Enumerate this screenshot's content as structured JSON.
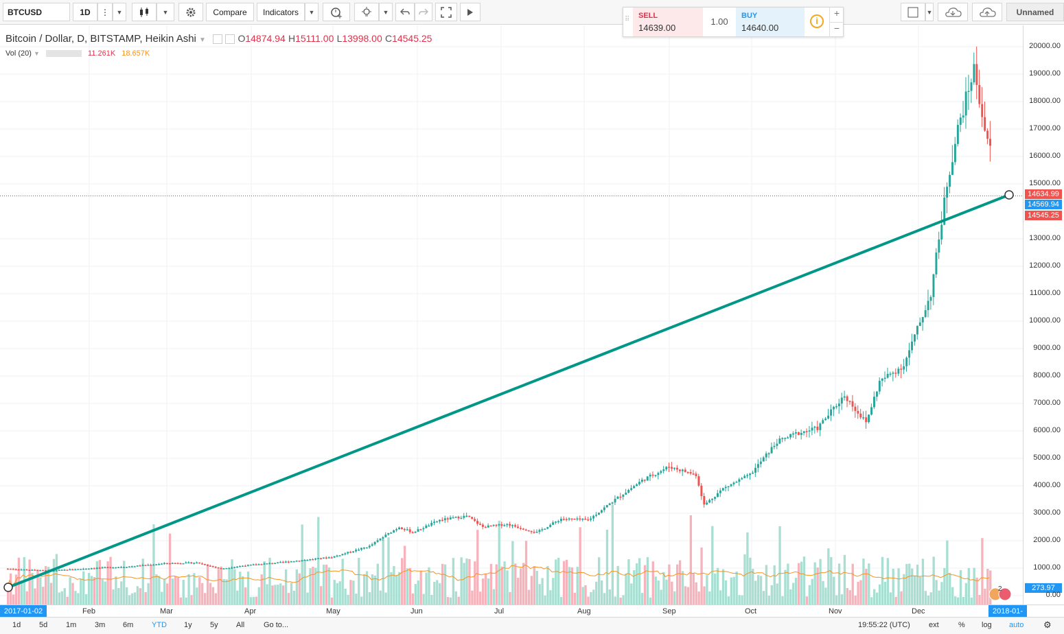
{
  "toolbar": {
    "symbol": "BTCUSD",
    "interval": "1D",
    "compare_label": "Compare",
    "indicators_label": "Indicators",
    "layout_name": "Unnamed"
  },
  "trade": {
    "sell_label": "SELL",
    "sell_price": "14639.00",
    "quantity": "1.00",
    "buy_label": "BUY",
    "buy_price": "14640.00"
  },
  "legend": {
    "title": "Bitcoin / Dollar, D, BITSTAMP, Heikin Ashi",
    "o_label": "O",
    "o_value": "14874.94",
    "h_label": "H",
    "h_value": "15111.00",
    "l_label": "L",
    "l_value": "13998.00",
    "c_label": "C",
    "c_value": "14545.25",
    "vol_label": "Vol (20)",
    "vol_value": "11.261K",
    "vol_ma_value": "18.657K"
  },
  "price_axis": [
    "20000.00",
    "19000.00",
    "18000.00",
    "17000.00",
    "16000.00",
    "15000.00",
    "13000.00",
    "12000.00",
    "11000.00",
    "10000.00",
    "9000.00",
    "8000.00",
    "7000.00",
    "6000.00",
    "5000.00",
    "4000.00",
    "3000.00",
    "2000.00",
    "1000.00",
    "0.00"
  ],
  "price_tags": {
    "last": "14634.99",
    "line": "14569.94",
    "close": "14545.25",
    "volume": "273.97"
  },
  "time_axis": {
    "start": "2017-01-02",
    "end": "2018-01-",
    "months": [
      "Feb",
      "Mar",
      "Apr",
      "May",
      "Jun",
      "Jul",
      "Aug",
      "Sep",
      "Oct",
      "Nov",
      "Dec"
    ]
  },
  "ranges": [
    "1d",
    "5d",
    "1m",
    "3m",
    "6m",
    "YTD",
    "1y",
    "5y",
    "All",
    "Go to..."
  ],
  "status": {
    "time": "19:55:22 (UTC)",
    "ext": "ext",
    "pct": "%",
    "log": "log",
    "auto": "auto"
  },
  "colors": {
    "up": "#26a69a",
    "down": "#ef5350",
    "trend": "#009688",
    "accent": "#2196f3"
  },
  "chart_data": {
    "type": "candlestick",
    "title": "Bitcoin / Dollar, D, BITSTAMP, Heikin Ashi",
    "ylim": [
      0,
      20000
    ],
    "monthly_close": [
      {
        "month": "2017-01",
        "close": 970
      },
      {
        "month": "2017-02",
        "close": 1180
      },
      {
        "month": "2017-03",
        "close": 1080
      },
      {
        "month": "2017-04",
        "close": 1350
      },
      {
        "month": "2017-05",
        "close": 2300
      },
      {
        "month": "2017-06",
        "close": 2500
      },
      {
        "month": "2017-07",
        "close": 2850
      },
      {
        "month": "2017-08",
        "close": 4700
      },
      {
        "month": "2017-09",
        "close": 4300
      },
      {
        "month": "2017-10",
        "close": 6400
      },
      {
        "month": "2017-11",
        "close": 10000
      },
      {
        "month": "2017-12",
        "close": 14000
      }
    ],
    "trend_line": {
      "from": {
        "date": "2017-01-02",
        "price": 330
      },
      "to": {
        "date": "2018-01-02",
        "price": 14569.94
      }
    }
  }
}
